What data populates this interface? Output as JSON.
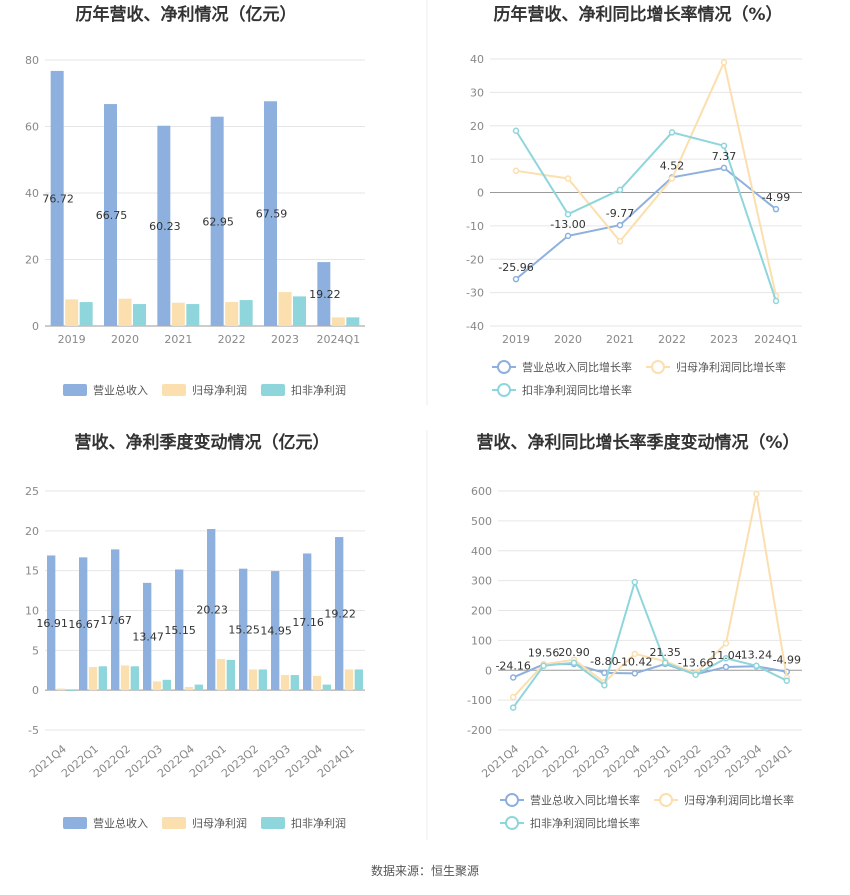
{
  "source_label": "数据来源：恒生聚源",
  "colors": {
    "revenue": "#8eb0de",
    "net_profit": "#fbdfae",
    "deducted_profit": "#8fd6dc",
    "grid": "#e6e6e6",
    "axis": "#999999"
  },
  "chart_data": [
    {
      "type": "bar",
      "title": "历年营收、净利情况（亿元）",
      "categories": [
        "2019",
        "2020",
        "2021",
        "2022",
        "2023",
        "2024Q1"
      ],
      "ylim": [
        0,
        80
      ],
      "yticks": [
        0,
        20,
        40,
        60,
        80
      ],
      "series": [
        {
          "name": "营业总收入",
          "values": [
            76.72,
            66.75,
            60.23,
            62.95,
            67.59,
            19.22
          ],
          "labels": [
            "76.72",
            "66.75",
            "60.23",
            "62.95",
            "67.59",
            "19.22"
          ]
        },
        {
          "name": "归母净利润",
          "values": [
            8.0,
            8.2,
            7.0,
            7.2,
            10.2,
            2.6
          ]
        },
        {
          "name": "扣非净利润",
          "values": [
            7.2,
            6.6,
            6.6,
            7.8,
            8.9,
            2.6
          ]
        }
      ],
      "legend": "bottom"
    },
    {
      "type": "line",
      "title": "历年营收、净利同比增长率情况（%）",
      "categories": [
        "2019",
        "2020",
        "2021",
        "2022",
        "2023",
        "2024Q1"
      ],
      "ylim": [
        -40,
        40
      ],
      "yticks": [
        -40,
        -30,
        -20,
        -10,
        0,
        10,
        20,
        30,
        40
      ],
      "series": [
        {
          "name": "营业总收入同比增长率",
          "values": [
            -25.96,
            -13.0,
            -9.77,
            4.52,
            7.37,
            -4.99
          ],
          "labels": [
            "-25.96",
            "-13.00",
            "-9.77",
            "4.52",
            "7.37",
            "-4.99"
          ]
        },
        {
          "name": "归母净利润同比增长率",
          "values": [
            6.5,
            4.2,
            -14.6,
            4.2,
            39.0,
            -31.0
          ]
        },
        {
          "name": "扣非净利润同比增长率",
          "values": [
            18.5,
            -6.5,
            0.8,
            18.0,
            14.0,
            -32.5
          ]
        }
      ],
      "legend": "bottom"
    },
    {
      "type": "bar",
      "title": "营收、净利季度变动情况（亿元）",
      "categories": [
        "2021Q4",
        "2022Q1",
        "2022Q2",
        "2022Q3",
        "2022Q4",
        "2023Q1",
        "2023Q2",
        "2023Q3",
        "2023Q4",
        "2024Q1"
      ],
      "ylim": [
        -5,
        25
      ],
      "yticks": [
        -5,
        0,
        5,
        10,
        15,
        20,
        25
      ],
      "series": [
        {
          "name": "营业总收入",
          "values": [
            16.91,
            16.67,
            17.67,
            13.47,
            15.15,
            20.23,
            15.25,
            14.95,
            17.16,
            19.22
          ],
          "labels": [
            "16.91",
            "16.67",
            "17.67",
            "13.47",
            "15.15",
            "20.23",
            "15.25",
            "14.95",
            "17.16",
            "19.22"
          ]
        },
        {
          "name": "归母净利润",
          "values": [
            0.2,
            2.9,
            3.1,
            1.1,
            0.4,
            3.9,
            2.6,
            1.9,
            1.8,
            2.6
          ]
        },
        {
          "name": "扣非净利润",
          "values": [
            -0.1,
            3.0,
            3.0,
            1.3,
            0.7,
            3.8,
            2.6,
            1.9,
            0.7,
            2.6
          ]
        }
      ],
      "legend": "bottom"
    },
    {
      "type": "line",
      "title": "营收、净利同比增长率季度变动情况（%）",
      "categories": [
        "2021Q4",
        "2022Q1",
        "2022Q2",
        "2022Q3",
        "2022Q4",
        "2023Q1",
        "2023Q2",
        "2023Q3",
        "2023Q4",
        "2024Q1"
      ],
      "ylim": [
        -200,
        600
      ],
      "yticks": [
        -200,
        -100,
        0,
        100,
        200,
        300,
        400,
        500,
        600
      ],
      "series": [
        {
          "name": "营业总收入同比增长率",
          "values": [
            -24.16,
            19.56,
            20.9,
            -8.8,
            -10.42,
            21.35,
            -13.66,
            11.04,
            13.24,
            -4.99
          ],
          "labels": [
            "-24.16",
            "19.56",
            "20.90",
            "-8.80",
            "-10.42",
            "21.35",
            "-13.66",
            "11.04",
            "13.24",
            "-4.99"
          ]
        },
        {
          "name": "归母净利润同比增长率",
          "values": [
            -90,
            20,
            35,
            -40,
            55,
            30,
            -10,
            90,
            590,
            -25
          ]
        },
        {
          "name": "扣非净利润同比增长率",
          "values": [
            -125,
            15,
            25,
            -50,
            295,
            25,
            -15,
            40,
            15,
            -35
          ]
        }
      ],
      "legend": "bottom"
    }
  ]
}
